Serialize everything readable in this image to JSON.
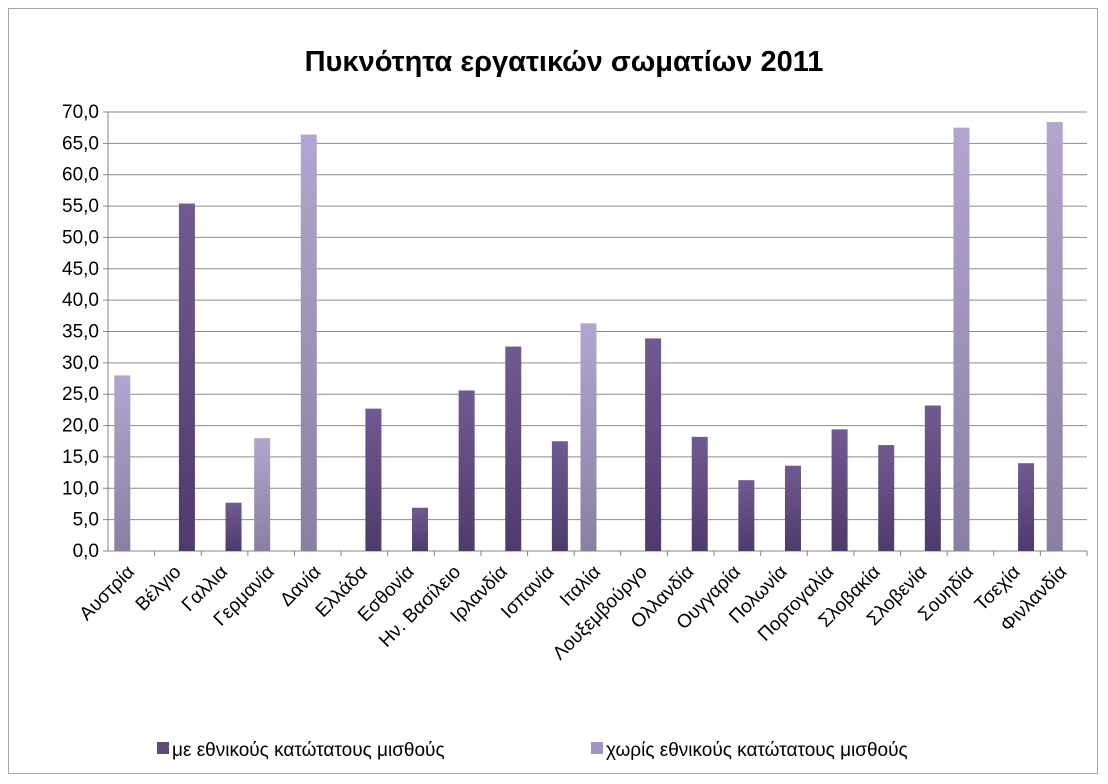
{
  "chart_data": {
    "type": "bar",
    "title": "Πυκνότητα εργατικών σωματίων 2011",
    "categories": [
      "Αυστρία",
      "Βέλγιο",
      "Γαλλια",
      "Γερμανία",
      "Δανία",
      "Ελλάδα",
      "Εσθονία",
      "Ην. Βασίλειο",
      "Ιρλανδία",
      "Ισπανία",
      "Ιταλία",
      "Λουξεμβούργο",
      "Ολλανδία",
      "Ουγγαρία",
      "Πολωνία",
      "Πορτογαλία",
      "Σλοβακία",
      "Σλοβενία",
      "Σουηδία",
      "Τσεχία",
      "Φινλανδία"
    ],
    "series": [
      {
        "name": "με εθνικούς κατώτατους μισθούς",
        "color": "#604a7b",
        "values": [
          null,
          55.4,
          7.7,
          null,
          null,
          22.7,
          6.9,
          25.6,
          32.6,
          17.5,
          null,
          33.9,
          18.2,
          11.3,
          13.6,
          19.4,
          16.9,
          23.2,
          null,
          14.0,
          null
        ]
      },
      {
        "name": "χωρίς  εθνικούς κατώτατους μισθούς",
        "color": "#a395c2",
        "values": [
          28.0,
          null,
          null,
          18.0,
          66.4,
          null,
          null,
          null,
          null,
          null,
          36.3,
          null,
          null,
          null,
          null,
          null,
          null,
          null,
          67.5,
          null,
          68.4
        ]
      }
    ],
    "ylim": [
      0,
      70
    ],
    "yticks": [
      "0,0",
      "5,0",
      "10,0",
      "15,0",
      "20,0",
      "25,0",
      "30,0",
      "35,0",
      "40,0",
      "45,0",
      "50,0",
      "55,0",
      "60,0",
      "65,0",
      "70,0"
    ],
    "grid": true,
    "legend_position": "bottom"
  }
}
